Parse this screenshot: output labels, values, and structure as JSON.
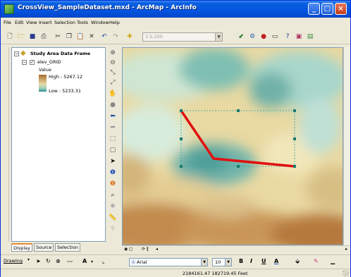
{
  "window": {
    "title": "CrossView_SampleDataset.mxd - ArcMap - ArcInfo"
  },
  "menu": [
    {
      "label": "File"
    },
    {
      "label": "Edit"
    },
    {
      "label": "View"
    },
    {
      "label": "Insert"
    },
    {
      "label": "Selection"
    },
    {
      "label": "Tools"
    },
    {
      "label": "Window"
    },
    {
      "label": "Help"
    }
  ],
  "toolbar": {
    "scale_value": "1:5,200"
  },
  "toc": {
    "data_frame": "Study Area Data Frame",
    "layer": "elev_GRID",
    "value_label": "Value",
    "high_label": "High : 5267.12",
    "low_label": "Low : 5233.31",
    "tabs": [
      {
        "label": "Display"
      },
      {
        "label": "Source"
      },
      {
        "label": "Selection"
      }
    ]
  },
  "drawing_toolbar": {
    "drawing_label": "Drawing",
    "font": "Arial",
    "font_size": "10",
    "bold_label": "B",
    "italic_label": "I",
    "underline_label": "U",
    "font_color_label": "A"
  },
  "status": {
    "coordinates": "2184161.47  182719.45 Feet"
  },
  "colors": {
    "profile_line": "#e01010",
    "title_bar": "#0454E0",
    "high_color": "#b5742f",
    "low_color": "#2f8f8f"
  },
  "icons": [
    "new-icon",
    "open-icon",
    "save-icon",
    "print-icon",
    "cut-icon",
    "copy-icon",
    "paste-icon",
    "delete-icon",
    "undo-icon",
    "redo-icon",
    "add-data-icon",
    "zoom-in-icon",
    "zoom-out-icon",
    "pan-icon",
    "globe-icon",
    "back-icon",
    "forward-icon",
    "select-icon",
    "identify-icon",
    "find-icon",
    "measure-icon"
  ]
}
